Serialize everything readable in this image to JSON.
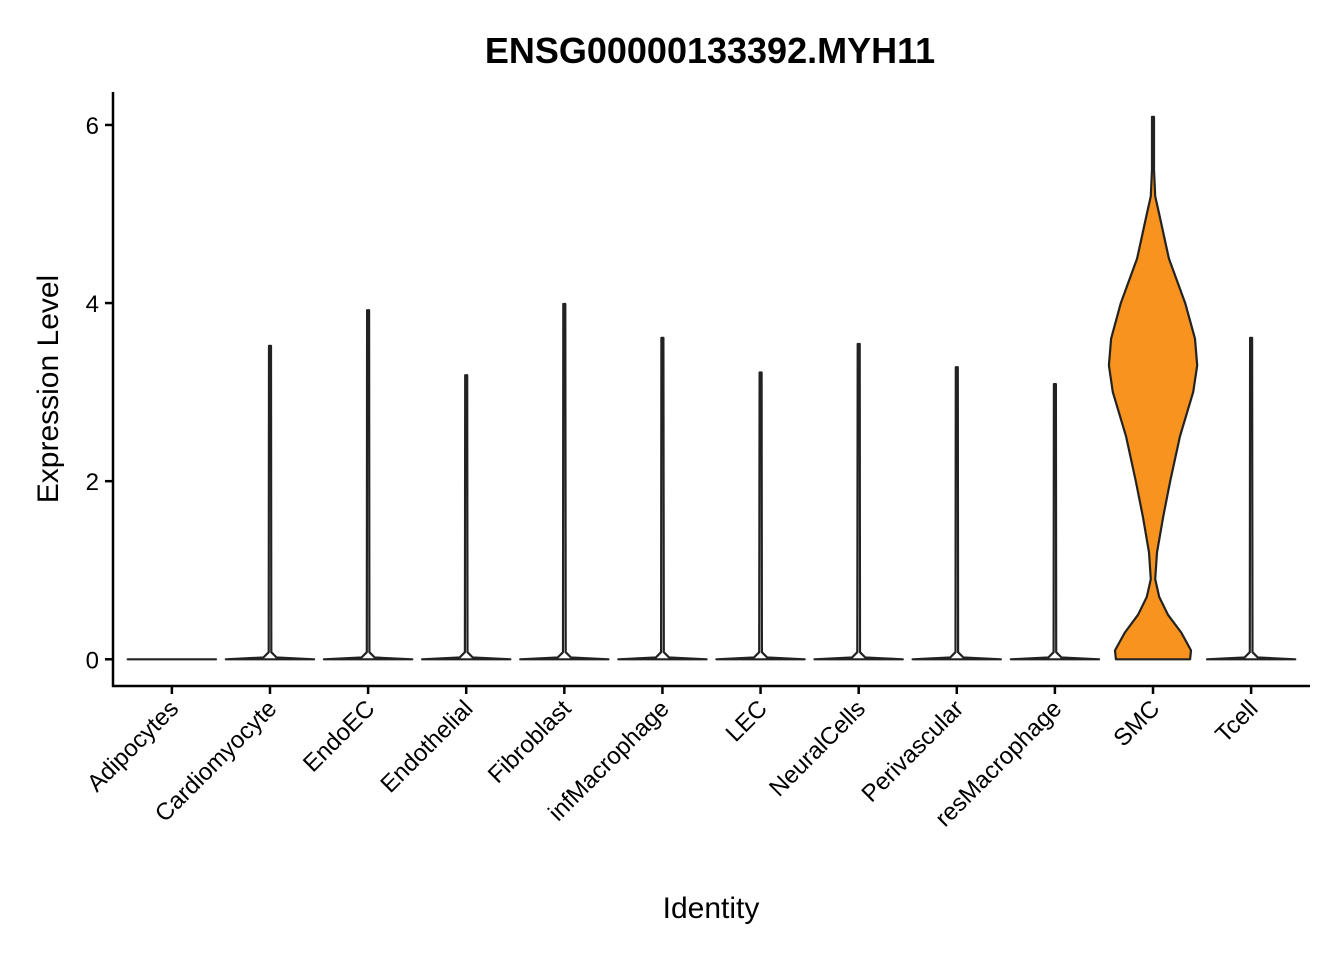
{
  "chart_data": {
    "type": "violin",
    "title": "ENSG00000133392.MYH11",
    "xlabel": "Identity",
    "ylabel": "Expression Level",
    "ylim": [
      -0.3,
      6.37
    ],
    "yticks": [
      0,
      2,
      4,
      6
    ],
    "violins": [
      {
        "name": "Adipocytes",
        "color": "#ffffff",
        "y": [
          0
        ],
        "density": [
          1
        ]
      },
      {
        "name": "Cardiomyocyte",
        "color": "#ffffff",
        "y": [
          0,
          0.02,
          0.08,
          3.52
        ],
        "density": [
          1,
          0.15,
          0.03,
          0
        ]
      },
      {
        "name": "EndoEC",
        "color": "#ffffff",
        "y": [
          0,
          0.02,
          0.08,
          3.92
        ],
        "density": [
          1,
          0.15,
          0.03,
          0
        ]
      },
      {
        "name": "Endothelial",
        "color": "#ffffff",
        "y": [
          0,
          0.02,
          0.08,
          3.19
        ],
        "density": [
          1,
          0.15,
          0.03,
          0
        ]
      },
      {
        "name": "Fibroblast",
        "color": "#ffffff",
        "y": [
          0,
          0.02,
          0.08,
          3.99
        ],
        "density": [
          1,
          0.15,
          0.03,
          0
        ]
      },
      {
        "name": "infMacrophage",
        "color": "#ffffff",
        "y": [
          0,
          0.02,
          0.08,
          3.61
        ],
        "density": [
          1,
          0.15,
          0.03,
          0
        ]
      },
      {
        "name": "LEC",
        "color": "#ffffff",
        "y": [
          0,
          0.02,
          0.08,
          3.22
        ],
        "density": [
          1,
          0.15,
          0.03,
          0
        ]
      },
      {
        "name": "NeuralCells",
        "color": "#ffffff",
        "y": [
          0,
          0.02,
          0.08,
          3.54
        ],
        "density": [
          1,
          0.15,
          0.03,
          0
        ]
      },
      {
        "name": "Perivascular",
        "color": "#ffffff",
        "y": [
          0,
          0.02,
          0.08,
          3.28
        ],
        "density": [
          1,
          0.15,
          0.03,
          0
        ]
      },
      {
        "name": "resMacrophage",
        "color": "#ffffff",
        "y": [
          0,
          0.02,
          0.08,
          3.09
        ],
        "density": [
          1,
          0.15,
          0.03,
          0
        ]
      },
      {
        "name": "SMC",
        "color": "#f7931e",
        "y": [
          0,
          0.1,
          0.3,
          0.5,
          0.7,
          0.9,
          1.2,
          1.6,
          2.0,
          2.5,
          3.0,
          3.3,
          3.6,
          4.0,
          4.5,
          5.0,
          5.2,
          5.5,
          6.09
        ],
        "density": [
          0.84,
          0.86,
          0.64,
          0.34,
          0.14,
          0.05,
          0.09,
          0.23,
          0.39,
          0.61,
          0.91,
          1,
          0.95,
          0.73,
          0.36,
          0.14,
          0.05,
          0.02,
          0
        ]
      },
      {
        "name": "Tcell",
        "color": "#ffffff",
        "y": [
          0,
          0.02,
          0.08,
          3.61
        ],
        "density": [
          1,
          0.15,
          0.03,
          0
        ]
      }
    ]
  }
}
